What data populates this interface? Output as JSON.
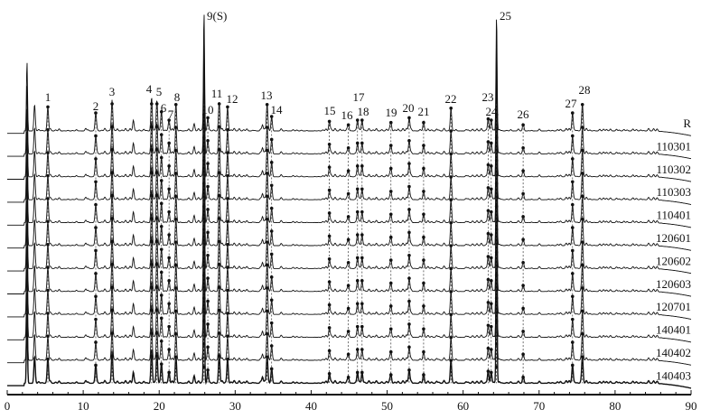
{
  "chart_data": {
    "type": "line",
    "title": "",
    "xlabel": "",
    "ylabel": "",
    "xlim": [
      0,
      90
    ],
    "x_ticks": [
      "0",
      "10",
      "20",
      "30",
      "40",
      "50",
      "60",
      "70",
      "80",
      "90"
    ],
    "grid": false,
    "legend": "none",
    "line_color": "#111111",
    "traces": [
      "R",
      "110301",
      "110302",
      "110303",
      "110401",
      "120601",
      "120602",
      "120603",
      "120701",
      "140401",
      "140402",
      "140403"
    ],
    "peaks": [
      {
        "label": "1",
        "rt": 5.35,
        "intensity": 20
      },
      {
        "label": "2",
        "rt": 11.65,
        "intensity": 15
      },
      {
        "label": "3",
        "rt": 13.8,
        "intensity": 26
      },
      {
        "label": "4",
        "rt": 19.0,
        "intensity": 28
      },
      {
        "label": "5",
        "rt": 19.7,
        "intensity": 26
      },
      {
        "label": "6",
        "rt": 20.3,
        "intensity": 16
      },
      {
        "label": "7",
        "rt": 21.3,
        "intensity": 9
      },
      {
        "label": "8",
        "rt": 22.2,
        "intensity": 22
      },
      {
        "label": "9(S)",
        "rt": 25.9,
        "intensity": 100
      },
      {
        "label": "10",
        "rt": 26.4,
        "intensity": 11
      },
      {
        "label": "11",
        "rt": 27.9,
        "intensity": 23
      },
      {
        "label": "12",
        "rt": 29.0,
        "intensity": 20
      },
      {
        "label": "13",
        "rt": 34.2,
        "intensity": 22
      },
      {
        "label": "14",
        "rt": 34.8,
        "intensity": 12
      },
      {
        "label": "15",
        "rt": 42.4,
        "intensity": 8
      },
      {
        "label": "16",
        "rt": 44.9,
        "intensity": 5
      },
      {
        "label": "17",
        "rt": 46.1,
        "intensity": 9
      },
      {
        "label": "18",
        "rt": 46.7,
        "intensity": 9
      },
      {
        "label": "19",
        "rt": 50.5,
        "intensity": 7
      },
      {
        "label": "20",
        "rt": 52.9,
        "intensity": 11
      },
      {
        "label": "21",
        "rt": 54.8,
        "intensity": 7
      },
      {
        "label": "22",
        "rt": 58.4,
        "intensity": 19
      },
      {
        "label": "23",
        "rt": 63.3,
        "intensity": 10
      },
      {
        "label": "24",
        "rt": 63.7,
        "intensity": 9
      },
      {
        "label": "25",
        "rt": 64.4,
        "intensity": 97
      },
      {
        "label": "26",
        "rt": 67.9,
        "intensity": 5
      },
      {
        "label": "27",
        "rt": 74.4,
        "intensity": 15
      },
      {
        "label": "28",
        "rt": 75.7,
        "intensity": 22
      }
    ],
    "unlabeled_peaks": [
      {
        "rt": 2.6,
        "intensity": 58
      },
      {
        "rt": 3.6,
        "intensity": 22
      },
      {
        "rt": 16.6,
        "intensity": 9
      },
      {
        "rt": 24.6,
        "intensity": 4
      },
      {
        "rt": 33.6,
        "intensity": 5
      }
    ]
  }
}
